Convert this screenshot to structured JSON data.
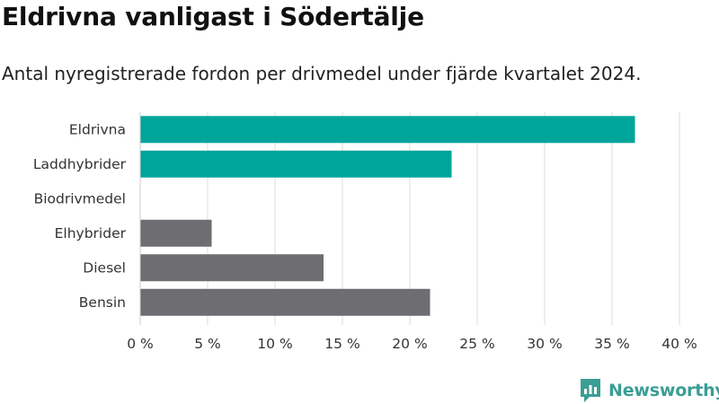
{
  "title": "Eldrivna vanligast i Södertälje",
  "subtitle": "Antal nyregistrerade fordon per drivmedel under fjärde kvartalet 2024.",
  "brand": "Newsworthy",
  "colors": {
    "highlight": "#00a59a",
    "neutral": "#6e6d72",
    "grid": "#dddddd"
  },
  "chart_data": {
    "type": "bar",
    "orientation": "horizontal",
    "categories": [
      "Eldrivna",
      "Laddhybrider",
      "Biodrivmedel",
      "Elhybrider",
      "Diesel",
      "Bensin"
    ],
    "values": [
      36.7,
      23.1,
      0,
      5.3,
      13.6,
      21.5
    ],
    "highlighted": [
      true,
      true,
      false,
      false,
      false,
      false
    ],
    "xlim": [
      0,
      40
    ],
    "xticks": [
      0,
      5,
      10,
      15,
      20,
      25,
      30,
      35,
      40
    ],
    "xtick_labels": [
      "0 %",
      "5 %",
      "10 %",
      "15 %",
      "20 %",
      "25 %",
      "30 %",
      "35 %",
      "40 %"
    ],
    "grid": true,
    "unit": "%"
  }
}
